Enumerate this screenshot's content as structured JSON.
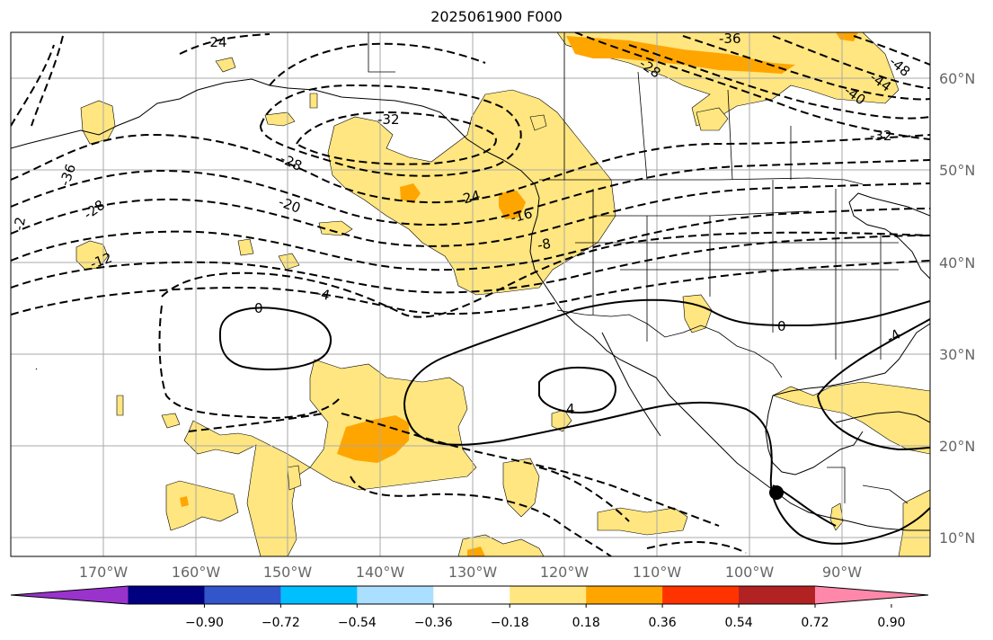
{
  "title": "2025061900 F000",
  "map": {
    "lon_labels": [
      "170°W",
      "160°W",
      "150°W",
      "140°W",
      "130°W",
      "120°W",
      "110°W",
      "100°W",
      "90°W"
    ],
    "lat_labels": [
      "60°N",
      "50°N",
      "40°N",
      "30°N",
      "20°N",
      "10°N"
    ],
    "contour_labels": [
      "-24",
      "-36",
      "-28",
      "-20",
      "-12",
      "-4",
      "0",
      "-32",
      "-28",
      "-24",
      "-16",
      "-8",
      "-4",
      "-40",
      "-44",
      "-48",
      "-32",
      "-36",
      "-28",
      "0",
      "4",
      "-2",
      "-16"
    ],
    "storm_marker": "hurricane-center"
  },
  "colorbar": {
    "tick_labels": [
      "−0.90",
      "−0.72",
      "−0.54",
      "−0.36",
      "−0.18",
      "0.18",
      "0.36",
      "0.54",
      "0.72",
      "0.90"
    ],
    "colors": [
      "#9933cc",
      "#000080",
      "#3355cc",
      "#00bfff",
      "#aadfff",
      "#ffffff",
      "#ffe680",
      "#ffa500",
      "#ff3300",
      "#b22222",
      "#ff88aa"
    ]
  }
}
